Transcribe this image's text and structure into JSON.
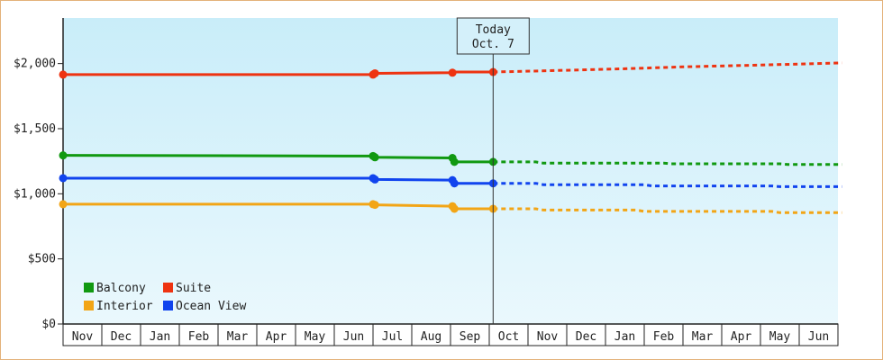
{
  "chart_data": {
    "type": "line",
    "title": "",
    "xlabel": "",
    "ylabel": "",
    "ylim": [
      0,
      2350
    ],
    "y_ticks": [
      {
        "value": 0,
        "label": "$0"
      },
      {
        "value": 500,
        "label": "$500"
      },
      {
        "value": 1000,
        "label": "$1,000"
      },
      {
        "value": 1500,
        "label": "$1,500"
      },
      {
        "value": 2000,
        "label": "$2,000"
      }
    ],
    "months": [
      "Nov",
      "Dec",
      "Jan",
      "Feb",
      "Mar",
      "Apr",
      "May",
      "Jun",
      "Jul",
      "Aug",
      "Sep",
      "Oct",
      "Nov",
      "Dec",
      "Jan",
      "Feb",
      "Mar",
      "Apr",
      "May",
      "Jun"
    ],
    "today": {
      "line1": "Today",
      "line2": "Oct. 7",
      "month_index": 11.1
    },
    "grid": false,
    "legend_position": "bottom-left",
    "series": [
      {
        "name": "Balcony",
        "color": "#119911",
        "history": [
          [
            0,
            1295
          ],
          [
            8.0,
            1290
          ],
          [
            8.05,
            1280
          ],
          [
            10.05,
            1275
          ],
          [
            10.1,
            1245
          ],
          [
            11.1,
            1245
          ]
        ],
        "markers": [
          [
            0,
            1295
          ],
          [
            8.0,
            1290
          ],
          [
            8.05,
            1280
          ],
          [
            10.05,
            1275
          ],
          [
            10.1,
            1245
          ],
          [
            11.1,
            1245
          ]
        ],
        "forecast": [
          [
            11.1,
            1245
          ],
          [
            12.2,
            1245
          ],
          [
            12.4,
            1235
          ],
          [
            15.5,
            1235
          ],
          [
            15.7,
            1230
          ],
          [
            18.5,
            1230
          ],
          [
            18.7,
            1225
          ],
          [
            20.1,
            1225
          ]
        ]
      },
      {
        "name": "Suite",
        "color": "#ee3311",
        "history": [
          [
            0,
            1915
          ],
          [
            8.0,
            1915
          ],
          [
            8.05,
            1925
          ],
          [
            10.05,
            1930
          ],
          [
            10.1,
            1935
          ],
          [
            11.1,
            1935
          ]
        ],
        "markers": [
          [
            0,
            1915
          ],
          [
            8.0,
            1915
          ],
          [
            8.05,
            1925
          ],
          [
            10.05,
            1930
          ],
          [
            11.1,
            1935
          ]
        ],
        "forecast": [
          [
            11.1,
            1935
          ],
          [
            12.5,
            1945
          ],
          [
            14.5,
            1960
          ],
          [
            16.0,
            1975
          ],
          [
            17.5,
            1985
          ],
          [
            18.8,
            1995
          ],
          [
            20.1,
            2005
          ]
        ]
      },
      {
        "name": "Interior",
        "color": "#f2a516",
        "history": [
          [
            0,
            920
          ],
          [
            8.0,
            920
          ],
          [
            8.05,
            915
          ],
          [
            10.05,
            905
          ],
          [
            10.1,
            885
          ],
          [
            11.1,
            885
          ]
        ],
        "markers": [
          [
            0,
            920
          ],
          [
            8.0,
            920
          ],
          [
            8.05,
            915
          ],
          [
            10.05,
            905
          ],
          [
            10.1,
            885
          ],
          [
            11.1,
            885
          ]
        ],
        "forecast": [
          [
            11.1,
            885
          ],
          [
            12.2,
            885
          ],
          [
            12.4,
            875
          ],
          [
            14.8,
            875
          ],
          [
            15.0,
            865
          ],
          [
            18.3,
            865
          ],
          [
            18.5,
            855
          ],
          [
            20.1,
            855
          ]
        ]
      },
      {
        "name": "Ocean View",
        "color": "#1144ee",
        "history": [
          [
            0,
            1120
          ],
          [
            8.0,
            1120
          ],
          [
            8.05,
            1110
          ],
          [
            10.05,
            1105
          ],
          [
            10.1,
            1080
          ],
          [
            11.1,
            1080
          ]
        ],
        "markers": [
          [
            0,
            1120
          ],
          [
            8.0,
            1120
          ],
          [
            8.05,
            1110
          ],
          [
            10.05,
            1105
          ],
          [
            10.1,
            1080
          ],
          [
            11.1,
            1080
          ]
        ],
        "forecast": [
          [
            11.1,
            1080
          ],
          [
            12.2,
            1080
          ],
          [
            12.4,
            1070
          ],
          [
            15.0,
            1070
          ],
          [
            15.2,
            1060
          ],
          [
            18.3,
            1060
          ],
          [
            18.5,
            1055
          ],
          [
            20.1,
            1055
          ]
        ]
      }
    ],
    "legend": [
      {
        "name": "Balcony",
        "color": "#119911"
      },
      {
        "name": "Suite",
        "color": "#ee3311"
      },
      {
        "name": "Interior",
        "color": "#f2a516"
      },
      {
        "name": "Ocean View",
        "color": "#1144ee"
      }
    ]
  }
}
